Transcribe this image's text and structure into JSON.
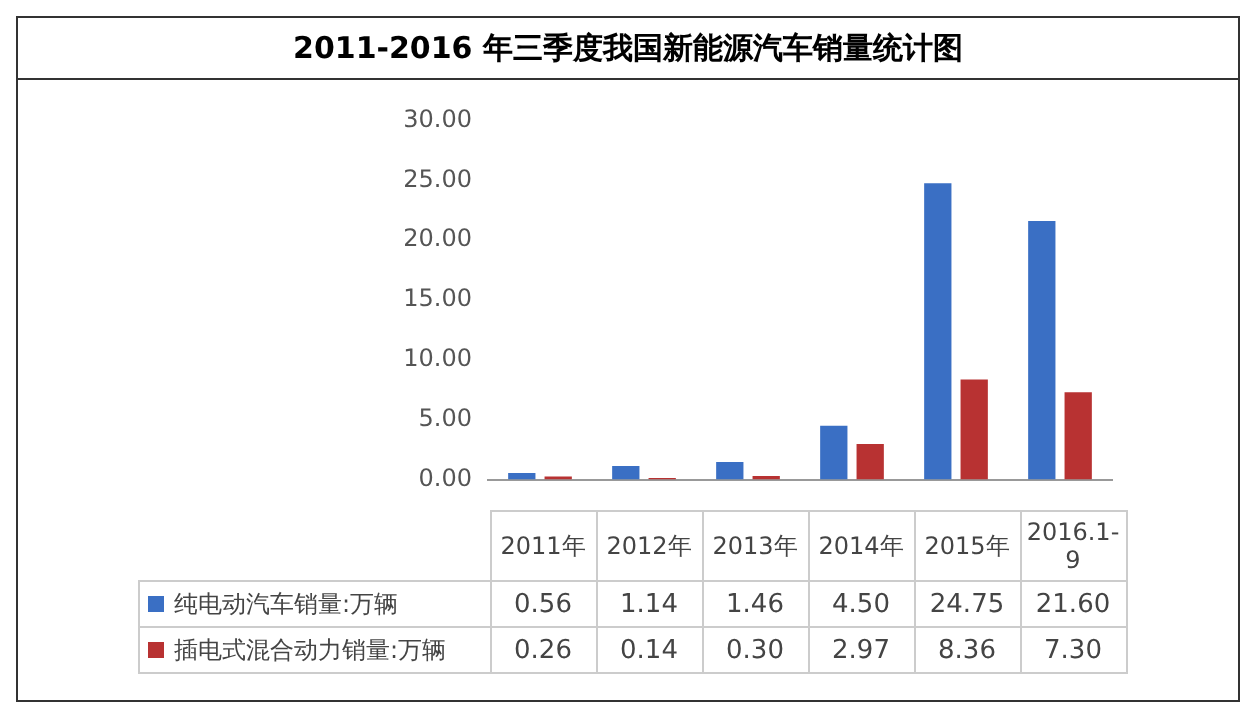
{
  "chart_data": {
    "type": "bar",
    "title": "2011-2016 年三季度我国新能源汽车销量统计图",
    "categories": [
      "2011年",
      "2012年",
      "2013年",
      "2014年",
      "2015年",
      "2016.1-9"
    ],
    "series": [
      {
        "name": "纯电动汽车销量:万辆",
        "color": "#3a6fc4",
        "values": [
          0.56,
          1.14,
          1.46,
          4.5,
          24.75,
          21.6
        ],
        "value_labels": [
          "0.56",
          "1.14",
          "1.46",
          "4.50",
          "24.75",
          "21.60"
        ]
      },
      {
        "name": "插电式混合动力销量:万辆",
        "color": "#b83232",
        "values": [
          0.26,
          0.14,
          0.3,
          2.97,
          8.36,
          7.3
        ],
        "value_labels": [
          "0.26",
          "0.14",
          "0.30",
          "2.97",
          "8.36",
          "7.30"
        ]
      }
    ],
    "ylim": [
      0,
      30
    ],
    "yticks": [
      {
        "value": 0,
        "label": "0.00"
      },
      {
        "value": 5,
        "label": "5.00"
      },
      {
        "value": 10,
        "label": "10.00"
      },
      {
        "value": 15,
        "label": "15.00"
      },
      {
        "value": 20,
        "label": "20.00"
      },
      {
        "value": 25,
        "label": "25.00"
      },
      {
        "value": 30,
        "label": "30.00"
      }
    ],
    "grid": false,
    "legend": "bottom"
  }
}
